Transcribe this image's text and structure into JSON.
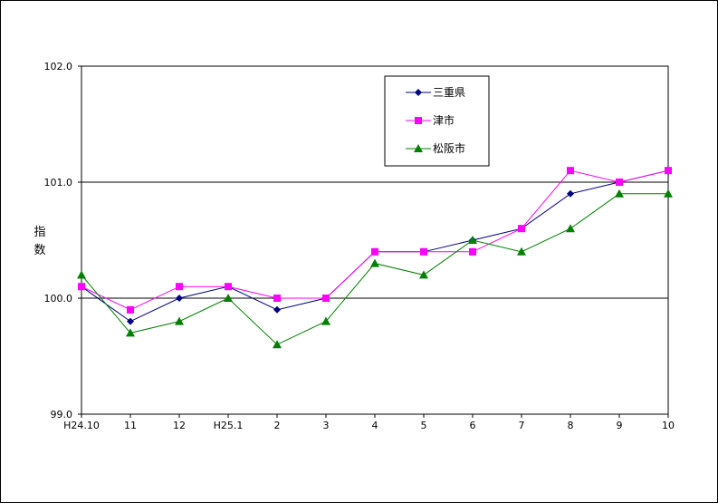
{
  "chart_data": {
    "type": "line",
    "categories": [
      "H24.10",
      "11",
      "12",
      "H25.1",
      "2",
      "3",
      "4",
      "5",
      "6",
      "7",
      "8",
      "9",
      "10"
    ],
    "ylabel_chars": [
      "指",
      "数"
    ],
    "ylim": [
      99.0,
      102.0
    ],
    "yticks": [
      "99.0",
      "100.0",
      "101.0",
      "102.0"
    ],
    "ytick_values": [
      99.0,
      100.0,
      101.0,
      102.0
    ],
    "gridlines": [
      100.0,
      101.0,
      102.0
    ],
    "legend_position": "top-right",
    "series": [
      {
        "name": "三重県",
        "color": "#000080",
        "marker": "diamond",
        "values": [
          100.1,
          99.8,
          100.0,
          100.1,
          99.9,
          100.0,
          100.4,
          100.4,
          100.5,
          100.6,
          100.9,
          101.0,
          101.1
        ]
      },
      {
        "name": "津市",
        "color": "#ff00ff",
        "marker": "square",
        "values": [
          100.1,
          99.9,
          100.1,
          100.1,
          100.0,
          100.0,
          100.4,
          100.4,
          100.4,
          100.6,
          101.1,
          101.0,
          101.1
        ]
      },
      {
        "name": "松阪市",
        "color": "#008000",
        "marker": "triangle",
        "values": [
          100.2,
          99.7,
          99.8,
          100.0,
          99.6,
          99.8,
          100.3,
          100.2,
          100.5,
          100.4,
          100.6,
          100.9,
          100.9
        ]
      }
    ]
  }
}
